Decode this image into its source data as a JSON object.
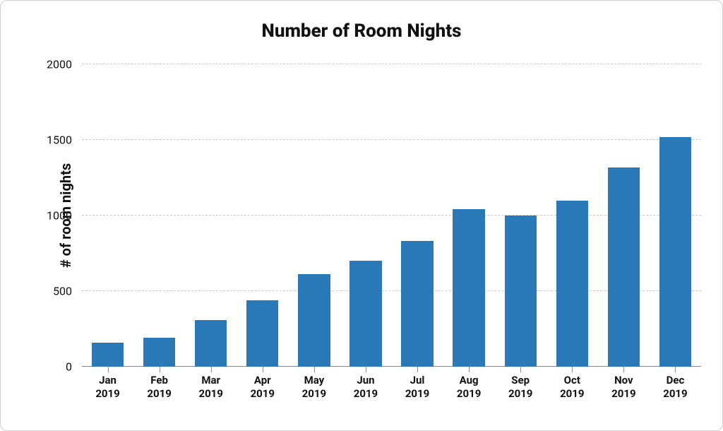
{
  "chart": {
    "type": "bar",
    "title": "Number of Room Nights",
    "title_fontsize": 26,
    "title_fontweight": 800,
    "ylabel": "# of room nights",
    "ylabel_fontsize": 20,
    "ylabel_fontweight": 700,
    "categories": [
      {
        "month": "Jan",
        "year": "2019"
      },
      {
        "month": "Feb",
        "year": "2019"
      },
      {
        "month": "Mar",
        "year": "2019"
      },
      {
        "month": "Apr",
        "year": "2019"
      },
      {
        "month": "May",
        "year": "2019"
      },
      {
        "month": "Jun",
        "year": "2019"
      },
      {
        "month": "Jul",
        "year": "2019"
      },
      {
        "month": "Aug",
        "year": "2019"
      },
      {
        "month": "Sep",
        "year": "2019"
      },
      {
        "month": "Oct",
        "year": "2019"
      },
      {
        "month": "Nov",
        "year": "2019"
      },
      {
        "month": "Dec",
        "year": "2019"
      }
    ],
    "values": [
      160,
      190,
      310,
      440,
      610,
      700,
      830,
      1040,
      1000,
      1100,
      1320,
      1520
    ],
    "bar_color": "#2a7ab9",
    "y_min": 0,
    "y_max": 2000,
    "y_ticks": [
      0,
      500,
      1000,
      1500,
      2000
    ],
    "tick_fontsize": 16,
    "xlabel_fontsize": 15,
    "grid_color": "#c8c8c8",
    "grid_style": "dashed",
    "baseline_color": "#888888",
    "background_color": "#ffffff",
    "border_color": "#d0d0d0",
    "border_radius": 10,
    "bar_width_ratio": 0.62
  }
}
